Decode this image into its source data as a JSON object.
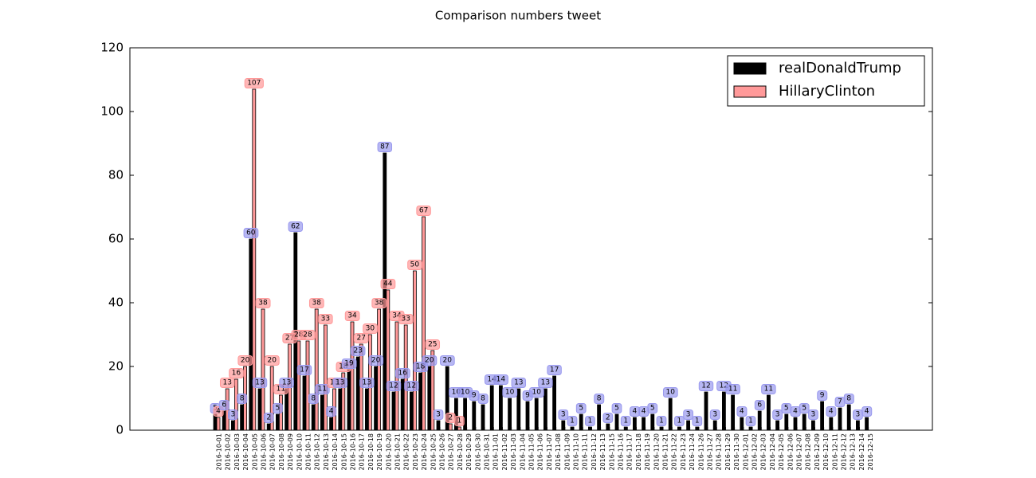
{
  "chart_data": {
    "type": "bar",
    "title": "Comparison numbers tweet",
    "categories": [
      "2016-10-01",
      "2016-10-02",
      "2016-10-03",
      "2016-10-04",
      "2016-10-05",
      "2016-10-06",
      "2016-10-07",
      "2016-10-08",
      "2016-10-09",
      "2016-10-10",
      "2016-10-11",
      "2016-10-12",
      "2016-10-13",
      "2016-10-14",
      "2016-10-15",
      "2016-10-16",
      "2016-10-17",
      "2016-10-18",
      "2016-10-19",
      "2016-10-20",
      "2016-10-21",
      "2016-10-22",
      "2016-10-23",
      "2016-10-24",
      "2016-10-25",
      "2016-10-26",
      "2016-10-27",
      "2016-10-28",
      "2016-10-29",
      "2016-10-30",
      "2016-10-31",
      "2016-11-01",
      "2016-11-02",
      "2016-11-03",
      "2016-11-04",
      "2016-11-05",
      "2016-11-06",
      "2016-11-07",
      "2016-11-08",
      "2016-11-09",
      "2016-11-10",
      "2016-11-11",
      "2016-11-12",
      "2016-11-13",
      "2016-11-15",
      "2016-11-16",
      "2016-11-17",
      "2016-11-18",
      "2016-11-19",
      "2016-11-20",
      "2016-11-21",
      "2016-11-22",
      "2016-11-23",
      "2016-11-24",
      "2016-11-26",
      "2016-11-27",
      "2016-11-28",
      "2016-11-29",
      "2016-11-30",
      "2016-12-01",
      "2016-12-02",
      "2016-12-03",
      "2016-12-04",
      "2016-12-05",
      "2016-12-06",
      "2016-12-07",
      "2016-12-08",
      "2016-12-09",
      "2016-12-10",
      "2016-12-11",
      "2016-12-12",
      "2016-12-13",
      "2016-12-14",
      "2016-12-15"
    ],
    "series": [
      {
        "name": "realDonaldTrump",
        "color": "#000000",
        "values": [
          5,
          6,
          3,
          8,
          60,
          13,
          2,
          5,
          13,
          62,
          17,
          8,
          11,
          4,
          13,
          19,
          23,
          13,
          20,
          87,
          12,
          16,
          12,
          18,
          20,
          3,
          20,
          10,
          10,
          9,
          8,
          14,
          14,
          10,
          13,
          9,
          10,
          13,
          17,
          3,
          1,
          5,
          1,
          8,
          2,
          5,
          1,
          4,
          4,
          5,
          1,
          10,
          1,
          3,
          1,
          12,
          3,
          12,
          11,
          4,
          1,
          6,
          11,
          3,
          5,
          4,
          5,
          3,
          9,
          4,
          7,
          8,
          3,
          4
        ]
      },
      {
        "name": "HillaryClinton",
        "color": "#ff9999",
        "values": [
          4,
          13,
          16,
          20,
          107,
          38,
          20,
          11,
          27,
          28,
          28,
          38,
          33,
          13,
          18,
          34,
          27,
          30,
          38,
          44,
          34,
          33,
          50,
          67,
          25,
          null,
          2,
          1,
          null,
          null,
          null,
          null,
          null,
          null,
          null,
          null,
          null,
          null,
          null,
          null,
          null,
          null,
          null,
          null,
          null,
          null,
          null,
          null,
          null,
          null,
          null,
          null,
          null,
          null,
          null,
          null,
          null,
          null,
          null,
          null,
          null,
          null,
          null,
          null,
          null,
          null,
          null,
          null,
          null,
          null,
          null,
          null,
          null,
          null
        ]
      }
    ],
    "ylim": [
      0,
      120
    ],
    "yticks": [
      0,
      20,
      40,
      60,
      80,
      100,
      120
    ],
    "legend": "upper right"
  }
}
